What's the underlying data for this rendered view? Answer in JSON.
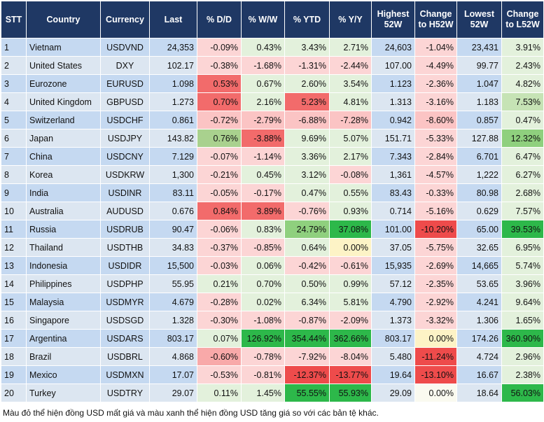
{
  "table": {
    "header": [
      "STT",
      "Country",
      "Currency",
      "Last",
      "% D/D",
      "% W/W",
      "% YTD",
      "% Y/Y",
      "Highest 52W",
      "Change to H52W",
      "Lowest 52W",
      "Change to L52W"
    ],
    "rows": [
      {
        "cells": [
          "1",
          "Vietnam",
          "USDVND",
          "24,353",
          "-0.09%",
          "0.43%",
          "3.43%",
          "2.71%",
          "24,603",
          "-1.04%",
          "23,431",
          "3.91%"
        ],
        "colors": [
          "#fcd5d5",
          "#e3f1dc",
          "#e3f1dc",
          "#e3f1dc",
          "#fcd5d5",
          "#e3f1dc"
        ]
      },
      {
        "cells": [
          "2",
          "United States",
          "DXY",
          "102.17",
          "-0.38%",
          "-1.68%",
          "-1.31%",
          "-2.44%",
          "107.00",
          "-4.49%",
          "99.77",
          "2.43%"
        ],
        "colors": [
          "#fcd5d5",
          "#fcd5d5",
          "#fcd5d5",
          "#fcd5d5",
          "#fcd5d5",
          "#e3f1dc"
        ]
      },
      {
        "cells": [
          "3",
          "Eurozone",
          "EURUSD",
          "1.098",
          "0.53%",
          "0.67%",
          "2.60%",
          "3.54%",
          "1.123",
          "-2.36%",
          "1.047",
          "4.82%"
        ],
        "colors": [
          "#f26b6b",
          "#e3f1dc",
          "#e3f1dc",
          "#e3f1dc",
          "#fcd5d5",
          "#e3f1dc"
        ]
      },
      {
        "cells": [
          "4",
          "United Kingdom",
          "GBPUSD",
          "1.273",
          "0.70%",
          "2.16%",
          "5.23%",
          "4.81%",
          "1.313",
          "-3.16%",
          "1.183",
          "7.53%"
        ],
        "colors": [
          "#f26b6b",
          "#e3f1dc",
          "#f26b6b",
          "#e3f1dc",
          "#fcd5d5",
          "#c6e3b5"
        ]
      },
      {
        "cells": [
          "5",
          "Switzerland",
          "USDCHF",
          "0.861",
          "-0.72%",
          "-2.79%",
          "-6.88%",
          "-7.28%",
          "0.942",
          "-8.60%",
          "0.857",
          "0.47%"
        ],
        "colors": [
          "#fbc4c4",
          "#fbc4c4",
          "#fbc4c4",
          "#fbc4c4",
          "#fbc4c4",
          "#e3f1dc"
        ]
      },
      {
        "cells": [
          "6",
          "Japan",
          "USDJPY",
          "143.82",
          "0.76%",
          "-3.88%",
          "9.69%",
          "5.07%",
          "151.71",
          "-5.33%",
          "127.88",
          "12.32%"
        ],
        "colors": [
          "#a9d18e",
          "#f26b6b",
          "#e3f1dc",
          "#e3f1dc",
          "#fcd5d5",
          "#8fd07e"
        ]
      },
      {
        "cells": [
          "7",
          "China",
          "USDCNY",
          "7.129",
          "-0.07%",
          "-1.14%",
          "3.36%",
          "2.17%",
          "7.343",
          "-2.84%",
          "6.701",
          "6.47%"
        ],
        "colors": [
          "#fcd5d5",
          "#fcd5d5",
          "#e3f1dc",
          "#e3f1dc",
          "#fcd5d5",
          "#e3f1dc"
        ]
      },
      {
        "cells": [
          "8",
          "Korea",
          "USDKRW",
          "1,300",
          "-0.21%",
          "0.45%",
          "3.12%",
          "-0.08%",
          "1,361",
          "-4.57%",
          "1,222",
          "6.27%"
        ],
        "colors": [
          "#fcd5d5",
          "#e3f1dc",
          "#e3f1dc",
          "#fcd5d5",
          "#fcd5d5",
          "#e3f1dc"
        ]
      },
      {
        "cells": [
          "9",
          "India",
          "USDINR",
          "83.11",
          "-0.05%",
          "-0.17%",
          "0.47%",
          "0.55%",
          "83.43",
          "-0.33%",
          "80.98",
          "2.68%"
        ],
        "colors": [
          "#fcd5d5",
          "#fcd5d5",
          "#e3f1dc",
          "#e3f1dc",
          "#fcd5d5",
          "#e3f1dc"
        ]
      },
      {
        "cells": [
          "10",
          "Australia",
          "AUDUSD",
          "0.676",
          "0.84%",
          "3.89%",
          "-0.76%",
          "0.93%",
          "0.714",
          "-5.16%",
          "0.629",
          "7.57%"
        ],
        "colors": [
          "#f26b6b",
          "#f26b6b",
          "#fcd5d5",
          "#e3f1dc",
          "#fcd5d5",
          "#e3f1dc"
        ]
      },
      {
        "cells": [
          "11",
          "Russia",
          "USDRUB",
          "90.47",
          "-0.06%",
          "0.83%",
          "24.79%",
          "37.08%",
          "101.00",
          "-10.20%",
          "65.00",
          "39.53%"
        ],
        "colors": [
          "#fcd5d5",
          "#e3f1dc",
          "#8fd07e",
          "#2db84a",
          "#ee4b4b",
          "#2db84a"
        ]
      },
      {
        "cells": [
          "12",
          "Thailand",
          "USDTHB",
          "34.83",
          "-0.37%",
          "-0.85%",
          "0.64%",
          "0.00%",
          "37.05",
          "-5.75%",
          "32.65",
          "6.95%"
        ],
        "colors": [
          "#fcd5d5",
          "#fcd5d5",
          "#e3f1dc",
          "#fdf3c6",
          "#fcd5d5",
          "#e3f1dc"
        ]
      },
      {
        "cells": [
          "13",
          "Indonesia",
          "USDIDR",
          "15,500",
          "-0.03%",
          "0.06%",
          "-0.42%",
          "-0.61%",
          "15,935",
          "-2.69%",
          "14,665",
          "5.74%"
        ],
        "colors": [
          "#fcd5d5",
          "#e3f1dc",
          "#fcd5d5",
          "#fcd5d5",
          "#fcd5d5",
          "#e3f1dc"
        ]
      },
      {
        "cells": [
          "14",
          "Philippines",
          "USDPHP",
          "55.95",
          "0.21%",
          "0.70%",
          "0.50%",
          "0.99%",
          "57.12",
          "-2.35%",
          "53.65",
          "3.96%"
        ],
        "colors": [
          "#e3f1dc",
          "#e3f1dc",
          "#e3f1dc",
          "#e3f1dc",
          "#fcd5d5",
          "#e3f1dc"
        ]
      },
      {
        "cells": [
          "15",
          "Malaysia",
          "USDMYR",
          "4.679",
          "-0.28%",
          "0.02%",
          "6.34%",
          "5.81%",
          "4.790",
          "-2.92%",
          "4.241",
          "9.64%"
        ],
        "colors": [
          "#fcd5d5",
          "#e3f1dc",
          "#e3f1dc",
          "#e3f1dc",
          "#fcd5d5",
          "#e3f1dc"
        ]
      },
      {
        "cells": [
          "16",
          "Singapore",
          "USDSGD",
          "1.328",
          "-0.30%",
          "-1.08%",
          "-0.87%",
          "-2.09%",
          "1.373",
          "-3.32%",
          "1.306",
          "1.65%"
        ],
        "colors": [
          "#fcd5d5",
          "#fcd5d5",
          "#fcd5d5",
          "#fcd5d5",
          "#fcd5d5",
          "#e3f1dc"
        ]
      },
      {
        "cells": [
          "17",
          "Argentina",
          "USDARS",
          "803.17",
          "0.07%",
          "126.92%",
          "354.44%",
          "362.66%",
          "803.17",
          "0.00%",
          "174.26",
          "360.90%"
        ],
        "colors": [
          "#e3f1dc",
          "#2db84a",
          "#2db84a",
          "#2db84a",
          "#fdf3c6",
          "#2db84a"
        ]
      },
      {
        "cells": [
          "18",
          "Brazil",
          "USDBRL",
          "4.868",
          "-0.60%",
          "-0.78%",
          "-7.92%",
          "-8.04%",
          "5.480",
          "-11.24%",
          "4.724",
          "2.96%"
        ],
        "colors": [
          "#f8a9a9",
          "#fcd5d5",
          "#fcd5d5",
          "#fcd5d5",
          "#ee4b4b",
          "#e3f1dc"
        ]
      },
      {
        "cells": [
          "19",
          "Mexico",
          "USDMXN",
          "17.07",
          "-0.53%",
          "-0.81%",
          "-12.37%",
          "-13.77%",
          "19.64",
          "-13.10%",
          "16.67",
          "2.38%"
        ],
        "colors": [
          "#fcd5d5",
          "#fcd5d5",
          "#ee4b4b",
          "#ee4b4b",
          "#ee4b4b",
          "#e3f1dc"
        ]
      },
      {
        "cells": [
          "20",
          "Turkey",
          "USDTRY",
          "29.07",
          "0.11%",
          "1.45%",
          "55.55%",
          "55.93%",
          "29.09",
          "0.00%",
          "18.64",
          "56.03%"
        ],
        "colors": [
          "#e3f1dc",
          "#e3f1dc",
          "#2db84a",
          "#2db84a",
          "#fafaf0",
          "#2db84a"
        ]
      }
    ]
  },
  "footer": "Màu đỏ thể hiện đồng USD mất giá và màu xanh thể hiện đồng USD tăng giá so với các bản tệ khác."
}
